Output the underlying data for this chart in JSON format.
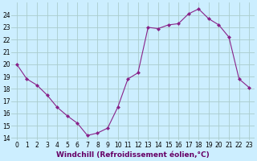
{
  "x": [
    0,
    1,
    2,
    3,
    4,
    5,
    6,
    7,
    8,
    9,
    10,
    11,
    12,
    13,
    14,
    15,
    16,
    17,
    18,
    19,
    20,
    21,
    22,
    23
  ],
  "y": [
    20.0,
    18.8,
    18.3,
    17.5,
    16.5,
    15.8,
    15.2,
    14.2,
    14.4,
    14.8,
    16.5,
    18.8,
    19.3,
    23.0,
    22.9,
    23.2,
    23.3,
    24.1,
    24.5,
    23.7,
    23.2,
    22.2,
    18.8,
    18.1
  ],
  "line_color": "#882288",
  "marker": "D",
  "marker_size": 2,
  "background_color": "#cceeff",
  "grid_color": "#aacccc",
  "xlabel": "Windchill (Refroidissement éolien,°C)",
  "xlabel_fontsize": 6.5,
  "xlabel_color": "#660066",
  "tick_fontsize": 5.5,
  "yticks": [
    14,
    15,
    16,
    17,
    18,
    19,
    20,
    21,
    22,
    23,
    24
  ],
  "xtick_labels": [
    "0",
    "1",
    "2",
    "3",
    "4",
    "5",
    "6",
    "7",
    "8",
    "9",
    "10",
    "11",
    "12",
    "13",
    "14",
    "15",
    "16",
    "17",
    "18",
    "19",
    "20",
    "21",
    "22",
    "23"
  ],
  "ylim": [
    13.8,
    25.0
  ],
  "xlim": [
    -0.5,
    23.5
  ]
}
